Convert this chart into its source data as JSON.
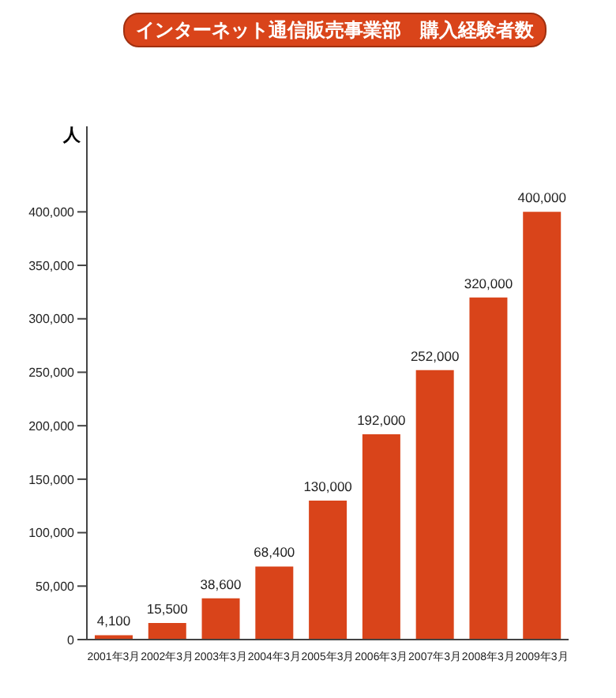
{
  "chart_data": {
    "type": "bar",
    "title": "インターネット通信販売事業部　購入経験者数",
    "ylabel": "人",
    "categories": [
      "2001年3月",
      "2002年3月",
      "2003年3月",
      "2004年3月",
      "2005年3月",
      "2006年3月",
      "2007年3月",
      "2008年3月",
      "2009年3月"
    ],
    "values": [
      4100,
      15500,
      38600,
      68400,
      130000,
      192000,
      252000,
      320000,
      400000
    ],
    "value_labels": [
      "4,100",
      "15,500",
      "38,600",
      "68,400",
      "130,000",
      "192,000",
      "252,000",
      "320,000",
      "400,000"
    ],
    "color": "#d9441a",
    "ylim": [
      0,
      480000
    ],
    "yticks": [
      0,
      {
        "value": 50000,
        "label": "50,000"
      },
      {
        "value": 100000,
        "label": "100,000"
      },
      {
        "value": 150000,
        "label": "150,000"
      },
      {
        "value": 200000,
        "label": "200,000"
      },
      {
        "value": 250000,
        "label": "250,000"
      },
      {
        "value": 300000,
        "label": "300,000"
      },
      {
        "value": 350000,
        "label": "350,000"
      },
      {
        "value": 400000,
        "label": "400,000"
      }
    ],
    "grid": false
  }
}
